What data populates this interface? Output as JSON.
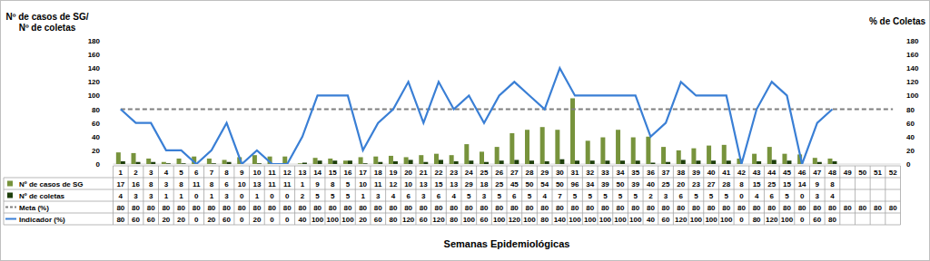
{
  "chart_data": {
    "type": "bar",
    "ylabel": [
      "Nº de casos de SG/",
      "Nº de coletas"
    ],
    "y2label": "% de Coletas",
    "xlabel": "Semanas Epidemiológicas",
    "categories": [
      1,
      2,
      3,
      4,
      5,
      6,
      7,
      8,
      9,
      10,
      11,
      12,
      13,
      14,
      15,
      16,
      17,
      18,
      19,
      20,
      21,
      22,
      23,
      24,
      25,
      26,
      27,
      28,
      29,
      30,
      31,
      32,
      33,
      34,
      35,
      36,
      37,
      38,
      39,
      40,
      41,
      42,
      43,
      44,
      45,
      46,
      47,
      48,
      49,
      50,
      51,
      52
    ],
    "ylim": [
      0,
      180
    ],
    "yticks": [
      0,
      20,
      40,
      60,
      80,
      100,
      120,
      140,
      160,
      180
    ],
    "y2lim": [
      0,
      180
    ],
    "y2ticks": [
      0,
      20,
      40,
      60,
      80,
      100,
      120,
      140,
      160,
      180
    ],
    "grid": false,
    "series": [
      {
        "name": "Nº de casos de SG",
        "type": "bar",
        "color": "#77933c",
        "values": [
          17,
          16,
          8,
          3,
          8,
          11,
          8,
          6,
          10,
          13,
          11,
          11,
          1,
          9,
          8,
          5,
          10,
          11,
          12,
          10,
          13,
          15,
          13,
          29,
          18,
          25,
          45,
          50,
          54,
          50,
          96,
          34,
          39,
          50,
          39,
          40,
          25,
          20,
          23,
          27,
          28,
          8,
          15,
          25,
          15,
          14,
          9,
          8,
          null,
          null,
          null,
          null
        ]
      },
      {
        "name": "Nº de coletas",
        "type": "bar",
        "color": "#1e3f0c",
        "values": [
          4,
          3,
          3,
          1,
          1,
          0,
          1,
          3,
          0,
          1,
          0,
          0,
          2,
          5,
          5,
          5,
          1,
          3,
          4,
          6,
          3,
          6,
          4,
          5,
          3,
          5,
          6,
          5,
          4,
          7,
          5,
          5,
          5,
          5,
          5,
          2,
          3,
          6,
          5,
          5,
          5,
          0,
          4,
          6,
          5,
          0,
          3,
          4,
          null,
          null,
          null,
          null
        ]
      },
      {
        "name": "Meta (%)",
        "type": "line",
        "axis": "y2",
        "color": "#7f7f7f",
        "line_style": "dashed",
        "values": [
          80,
          80,
          80,
          80,
          80,
          80,
          80,
          80,
          80,
          80,
          80,
          80,
          80,
          80,
          80,
          80,
          80,
          80,
          80,
          80,
          80,
          80,
          80,
          80,
          80,
          80,
          80,
          80,
          80,
          80,
          80,
          80,
          80,
          80,
          80,
          80,
          80,
          80,
          80,
          80,
          80,
          80,
          80,
          80,
          80,
          80,
          80,
          80,
          80,
          80,
          80,
          80
        ]
      },
      {
        "name": "Indicador (%)",
        "type": "line",
        "axis": "y2",
        "color": "#3a7fd5",
        "line_style": "solid",
        "values": [
          80,
          60,
          60,
          20,
          20,
          0,
          20,
          60,
          0,
          20,
          0,
          0,
          40,
          100,
          100,
          100,
          20,
          60,
          80,
          120,
          60,
          120,
          80,
          100,
          60,
          100,
          120,
          100,
          80,
          140,
          100,
          100,
          100,
          100,
          100,
          40,
          60,
          120,
          100,
          100,
          100,
          0,
          80,
          120,
          100,
          0,
          60,
          80,
          null,
          null,
          null,
          null
        ]
      }
    ]
  }
}
